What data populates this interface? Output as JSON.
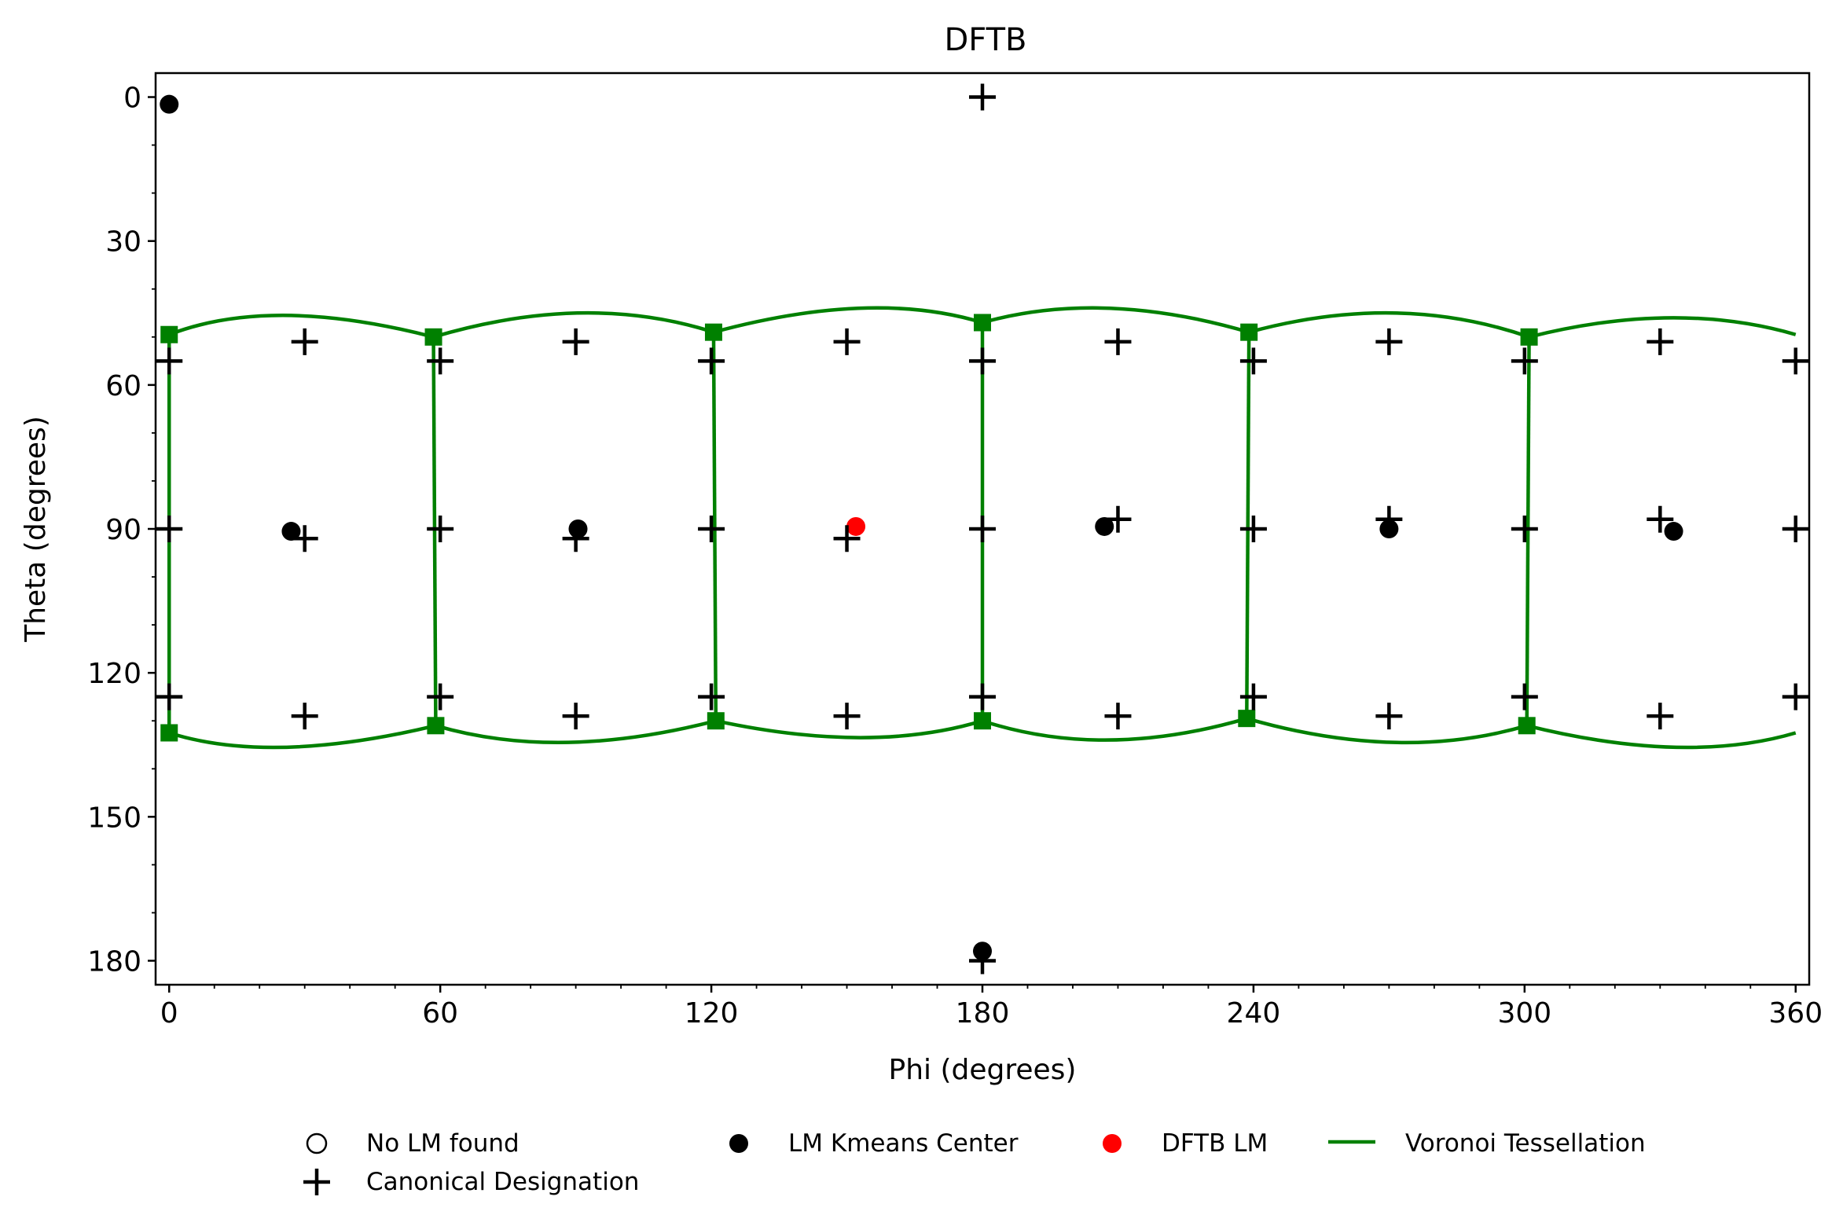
{
  "chart_data": {
    "type": "scatter",
    "title": "DFTB",
    "xlabel": "Phi (degrees)",
    "ylabel": "Theta (degrees)",
    "xlim": [
      -3,
      363
    ],
    "ylim": [
      185,
      -5
    ],
    "y_inverted": true,
    "xticks": [
      0,
      60,
      120,
      180,
      240,
      300,
      360
    ],
    "yticks": [
      0,
      30,
      60,
      90,
      120,
      150,
      180
    ],
    "grid": false,
    "legend_position": "bottom-center",
    "series": [
      {
        "name": "No LM found",
        "marker": "open-circle",
        "color": "#000000",
        "points": []
      },
      {
        "name": "LM Kmeans Center",
        "marker": "filled-circle",
        "color": "#000000",
        "points": [
          [
            0,
            1.5
          ],
          [
            27,
            90.5
          ],
          [
            90.5,
            90
          ],
          [
            207,
            89.5
          ],
          [
            270,
            90
          ],
          [
            333,
            90.5
          ],
          [
            180,
            178
          ]
        ]
      },
      {
        "name": "DFTB LM",
        "marker": "filled-circle",
        "color": "#ff0000",
        "points": [
          [
            152,
            89.5
          ]
        ]
      },
      {
        "name": "Canonical Designation",
        "marker": "plus",
        "color": "#000000",
        "points": [
          [
            180,
            0
          ],
          [
            30,
            51
          ],
          [
            90,
            51
          ],
          [
            150,
            51
          ],
          [
            210,
            51
          ],
          [
            270,
            51
          ],
          [
            330,
            51
          ],
          [
            0,
            55
          ],
          [
            60,
            55
          ],
          [
            120,
            55
          ],
          [
            180,
            55
          ],
          [
            240,
            55
          ],
          [
            300,
            55
          ],
          [
            360,
            55
          ],
          [
            0,
            90
          ],
          [
            60,
            90
          ],
          [
            120,
            90
          ],
          [
            180,
            90
          ],
          [
            240,
            90
          ],
          [
            300,
            90
          ],
          [
            360,
            90
          ],
          [
            30,
            92
          ],
          [
            90,
            92
          ],
          [
            150,
            92
          ],
          [
            210,
            88
          ],
          [
            270,
            88
          ],
          [
            330,
            88
          ],
          [
            0,
            125
          ],
          [
            60,
            125
          ],
          [
            120,
            125
          ],
          [
            180,
            125
          ],
          [
            240,
            125
          ],
          [
            300,
            125
          ],
          [
            360,
            125
          ],
          [
            30,
            129
          ],
          [
            90,
            129
          ],
          [
            150,
            129
          ],
          [
            210,
            129
          ],
          [
            270,
            129
          ],
          [
            330,
            129
          ],
          [
            180,
            180
          ]
        ]
      },
      {
        "name": "Voronoi Tessellation",
        "marker": "line",
        "color": "#008000",
        "vertices": [
          [
            0,
            49.5
          ],
          [
            58.5,
            50
          ],
          [
            120.5,
            49
          ],
          [
            180,
            47
          ],
          [
            239,
            49
          ],
          [
            301,
            50
          ],
          [
            0,
            132.5
          ],
          [
            59,
            131
          ],
          [
            121,
            130
          ],
          [
            180,
            130
          ],
          [
            238.5,
            129.5
          ],
          [
            300.5,
            131
          ]
        ],
        "top_boundary": [
          [
            [
              0,
              49.5
            ],
            [
              26,
              45.5
            ],
            [
              58.5,
              50
            ]
          ],
          [
            [
              58.5,
              50
            ],
            [
              91,
              45
            ],
            [
              120.5,
              49
            ]
          ],
          [
            [
              120.5,
              49
            ],
            [
              153,
              44
            ],
            [
              180,
              47
            ]
          ],
          [
            [
              180,
              47
            ],
            [
              208,
              44
            ],
            [
              239,
              49
            ]
          ],
          [
            [
              239,
              49
            ],
            [
              271,
              45
            ],
            [
              301,
              50
            ]
          ],
          [
            [
              301,
              50
            ],
            [
              332,
              46
            ],
            [
              360,
              49.5
            ]
          ]
        ],
        "bottom_boundary": [
          [
            [
              0,
              132.5
            ],
            [
              26,
              135.5
            ],
            [
              59,
              131
            ]
          ],
          [
            [
              59,
              131
            ],
            [
              88,
              134.5
            ],
            [
              121,
              130
            ]
          ],
          [
            [
              121,
              130
            ],
            [
              153,
              133.5
            ],
            [
              180,
              130
            ]
          ],
          [
            [
              180,
              130
            ],
            [
              208,
              134
            ],
            [
              238.5,
              129.5
            ]
          ],
          [
            [
              238.5,
              129.5
            ],
            [
              271,
              134.5
            ],
            [
              300.5,
              131
            ]
          ],
          [
            [
              300.5,
              131
            ],
            [
              333,
              135.5
            ],
            [
              360,
              132.5
            ]
          ]
        ],
        "verticals": [
          [
            [
              0,
              49.5
            ],
            [
              0,
              132.5
            ]
          ],
          [
            [
              58.5,
              50
            ],
            [
              59,
              131
            ]
          ],
          [
            [
              120.5,
              49
            ],
            [
              121,
              130
            ]
          ],
          [
            [
              180,
              47
            ],
            [
              180,
              130
            ]
          ],
          [
            [
              239,
              49
            ],
            [
              238.5,
              129.5
            ]
          ],
          [
            [
              301,
              50
            ],
            [
              300.5,
              131
            ]
          ]
        ]
      }
    ]
  },
  "legend": {
    "items": [
      {
        "label": "No LM found",
        "marker": "open-circle",
        "color": "#000000"
      },
      {
        "label": "LM Kmeans Center",
        "marker": "filled-circle",
        "color": "#000000"
      },
      {
        "label": "DFTB LM",
        "marker": "filled-circle",
        "color": "#ff0000"
      },
      {
        "label": "Voronoi Tessellation",
        "marker": "line",
        "color": "#008000"
      },
      {
        "label": "Canonical Designation",
        "marker": "plus",
        "color": "#000000"
      }
    ]
  }
}
